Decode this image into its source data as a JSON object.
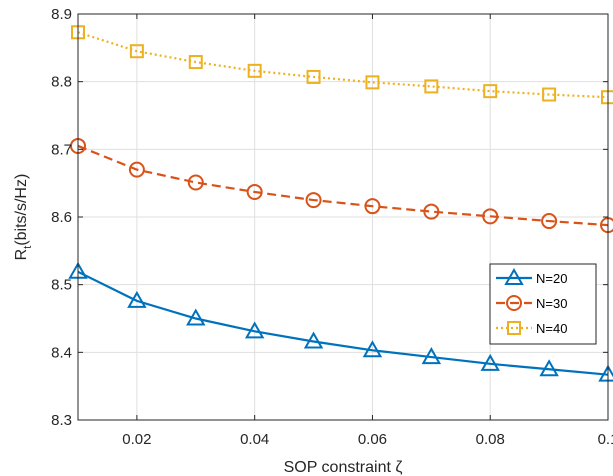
{
  "chart_data": {
    "type": "line",
    "xlabel": "SOP constraint ζ",
    "ylabel_main": "R",
    "ylabel_sub": "t",
    "ylabel_rest": "(bits/s/Hz)",
    "xlim": [
      0.01,
      0.1
    ],
    "ylim": [
      8.3,
      8.9
    ],
    "xticks": [
      0.02,
      0.04,
      0.06,
      0.08,
      0.1
    ],
    "xtick_labels": [
      "0.02",
      "0.04",
      "0.06",
      "0.08",
      "0.1"
    ],
    "yticks": [
      8.3,
      8.4,
      8.5,
      8.6,
      8.7,
      8.8,
      8.9
    ],
    "ytick_labels": [
      "8.3",
      "8.4",
      "8.5",
      "8.6",
      "8.7",
      "8.8",
      "8.9"
    ],
    "grid": true,
    "legend_position": "right, lower-middle",
    "x": [
      0.01,
      0.02,
      0.03,
      0.04,
      0.05,
      0.06,
      0.07,
      0.08,
      0.09,
      0.1
    ],
    "series": [
      {
        "name": "N=20",
        "color": "#0072BD",
        "line_style": "solid",
        "marker": "triangle",
        "values": [
          8.519,
          8.476,
          8.45,
          8.431,
          8.416,
          8.403,
          8.393,
          8.383,
          8.375,
          8.367
        ]
      },
      {
        "name": "N=30",
        "color": "#D95319",
        "line_style": "dashed",
        "marker": "circle",
        "values": [
          8.705,
          8.67,
          8.651,
          8.637,
          8.625,
          8.616,
          8.608,
          8.601,
          8.594,
          8.588
        ]
      },
      {
        "name": "N=40",
        "color": "#EDB120",
        "line_style": "dotted",
        "marker": "square",
        "values": [
          8.873,
          8.845,
          8.829,
          8.816,
          8.807,
          8.799,
          8.793,
          8.786,
          8.781,
          8.777
        ]
      }
    ]
  }
}
